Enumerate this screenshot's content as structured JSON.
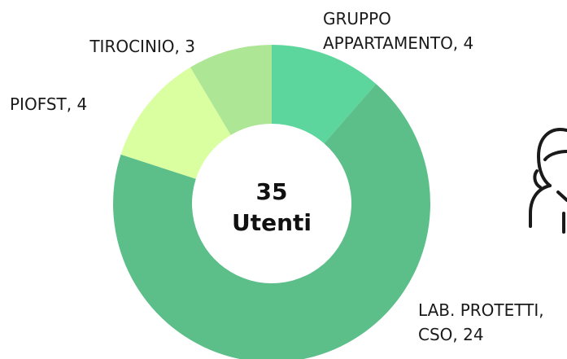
{
  "chart_data": {
    "type": "donut",
    "labels": [
      [
        "GRUPPO",
        "APPARTAMENTO, 4"
      ],
      [
        "LAB. PROTETTI,",
        "CSO, 24"
      ],
      [
        "PIOFST, 4"
      ],
      [
        "TIROCINIO, 3"
      ]
    ],
    "values": [
      4,
      24,
      4,
      3
    ],
    "colors": [
      "#5cd69c",
      "#5cbf8a",
      "#d9ffa0",
      "#ade694"
    ],
    "center_value": 35,
    "center_label": "Utenti"
  }
}
